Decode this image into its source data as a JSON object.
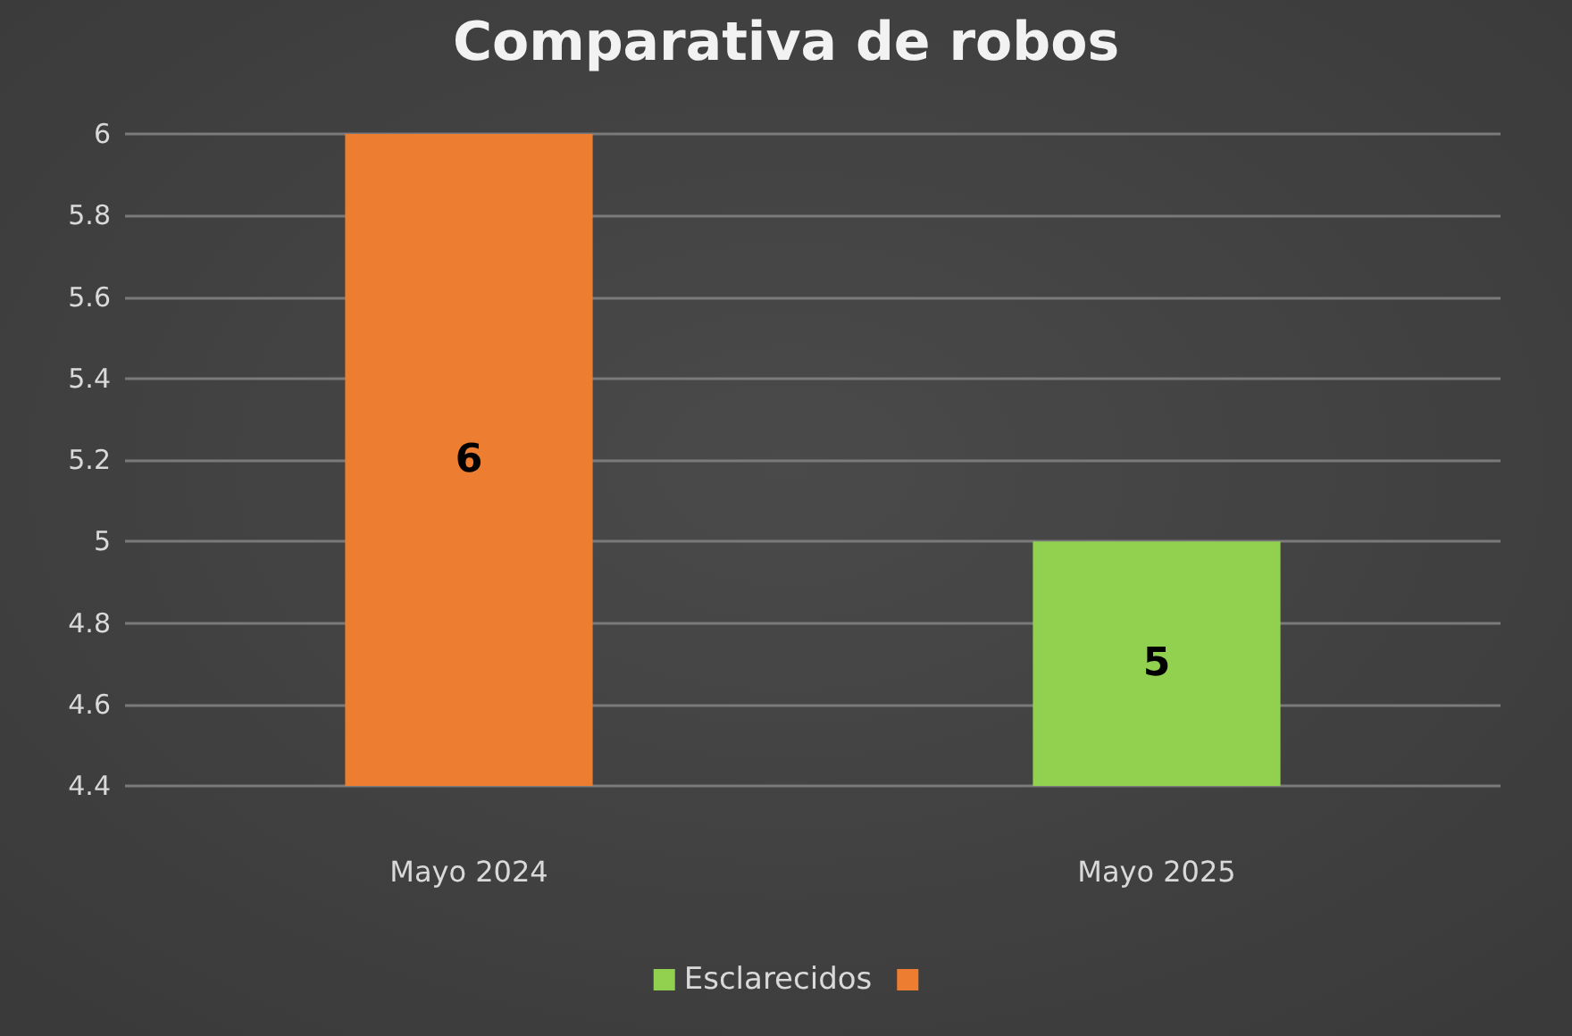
{
  "chart_data": {
    "type": "bar",
    "title": "Comparativa de robos",
    "categories": [
      "Mayo 2024",
      "Mayo 2025"
    ],
    "series": [
      {
        "name": "Esclarecidos",
        "color": "#92d050",
        "values": [
          null,
          5
        ]
      },
      {
        "color": "#ed7d31",
        "values": [
          6,
          null
        ]
      }
    ],
    "ylim": [
      4.4,
      6
    ],
    "yticks": [
      4.4,
      4.6,
      4.8,
      5,
      5.2,
      5.4,
      5.6,
      5.8,
      6
    ],
    "grid": true,
    "legend": "bottom",
    "data_labels": true
  }
}
